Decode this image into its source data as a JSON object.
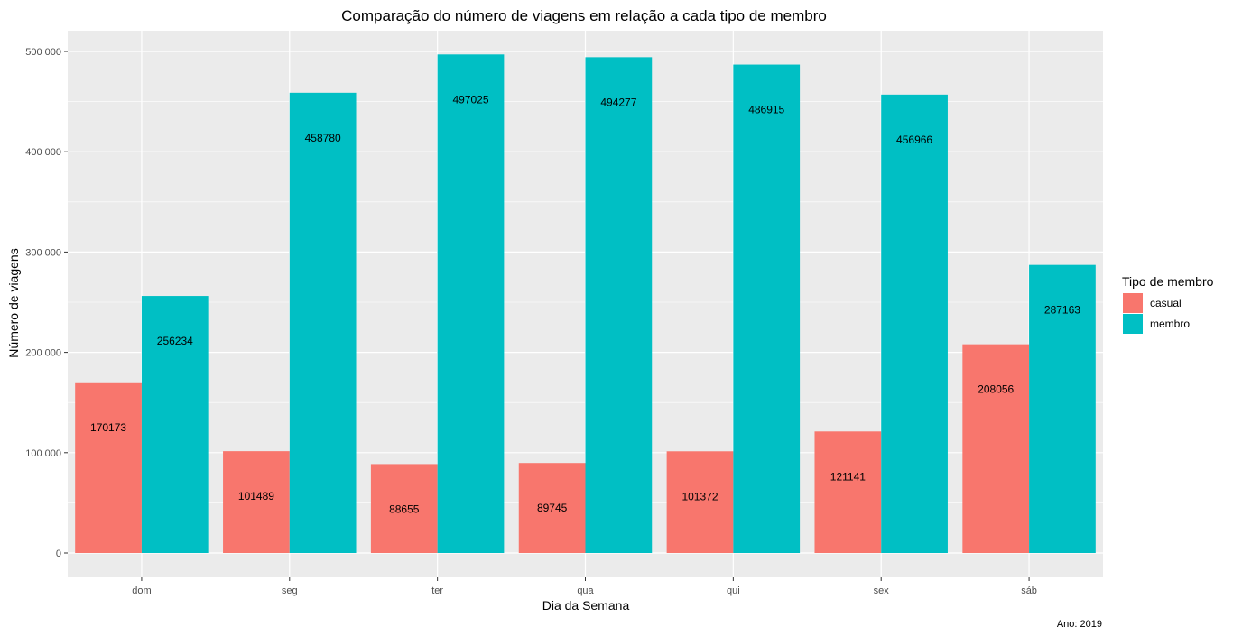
{
  "chart_data": {
    "type": "bar",
    "title": "Comparação do número de viagens em relação a cada tipo de membro",
    "xlabel": "Dia da Semana",
    "ylabel": "Número de viagens",
    "caption": "Ano: 2019",
    "categories": [
      "dom",
      "seg",
      "ter",
      "qua",
      "qui",
      "sex",
      "sáb"
    ],
    "series": [
      {
        "name": "casual",
        "color": "#F8766D",
        "values": [
          170173,
          101489,
          88655,
          89745,
          101372,
          121141,
          208056
        ]
      },
      {
        "name": "membro",
        "color": "#00BFC4",
        "values": [
          256234,
          458780,
          497025,
          494277,
          486915,
          456966,
          287163
        ]
      }
    ],
    "ylim": [
      0,
      500000
    ],
    "yticks": [
      0,
      100000,
      200000,
      300000,
      400000,
      500000
    ],
    "ytick_labels": [
      "0",
      "100 000",
      "200 000",
      "300 000",
      "400 000",
      "500 000"
    ],
    "grid": true,
    "panel_background": "#EBEBEB",
    "legend": {
      "title": "Tipo de membro",
      "placement": "right"
    }
  }
}
